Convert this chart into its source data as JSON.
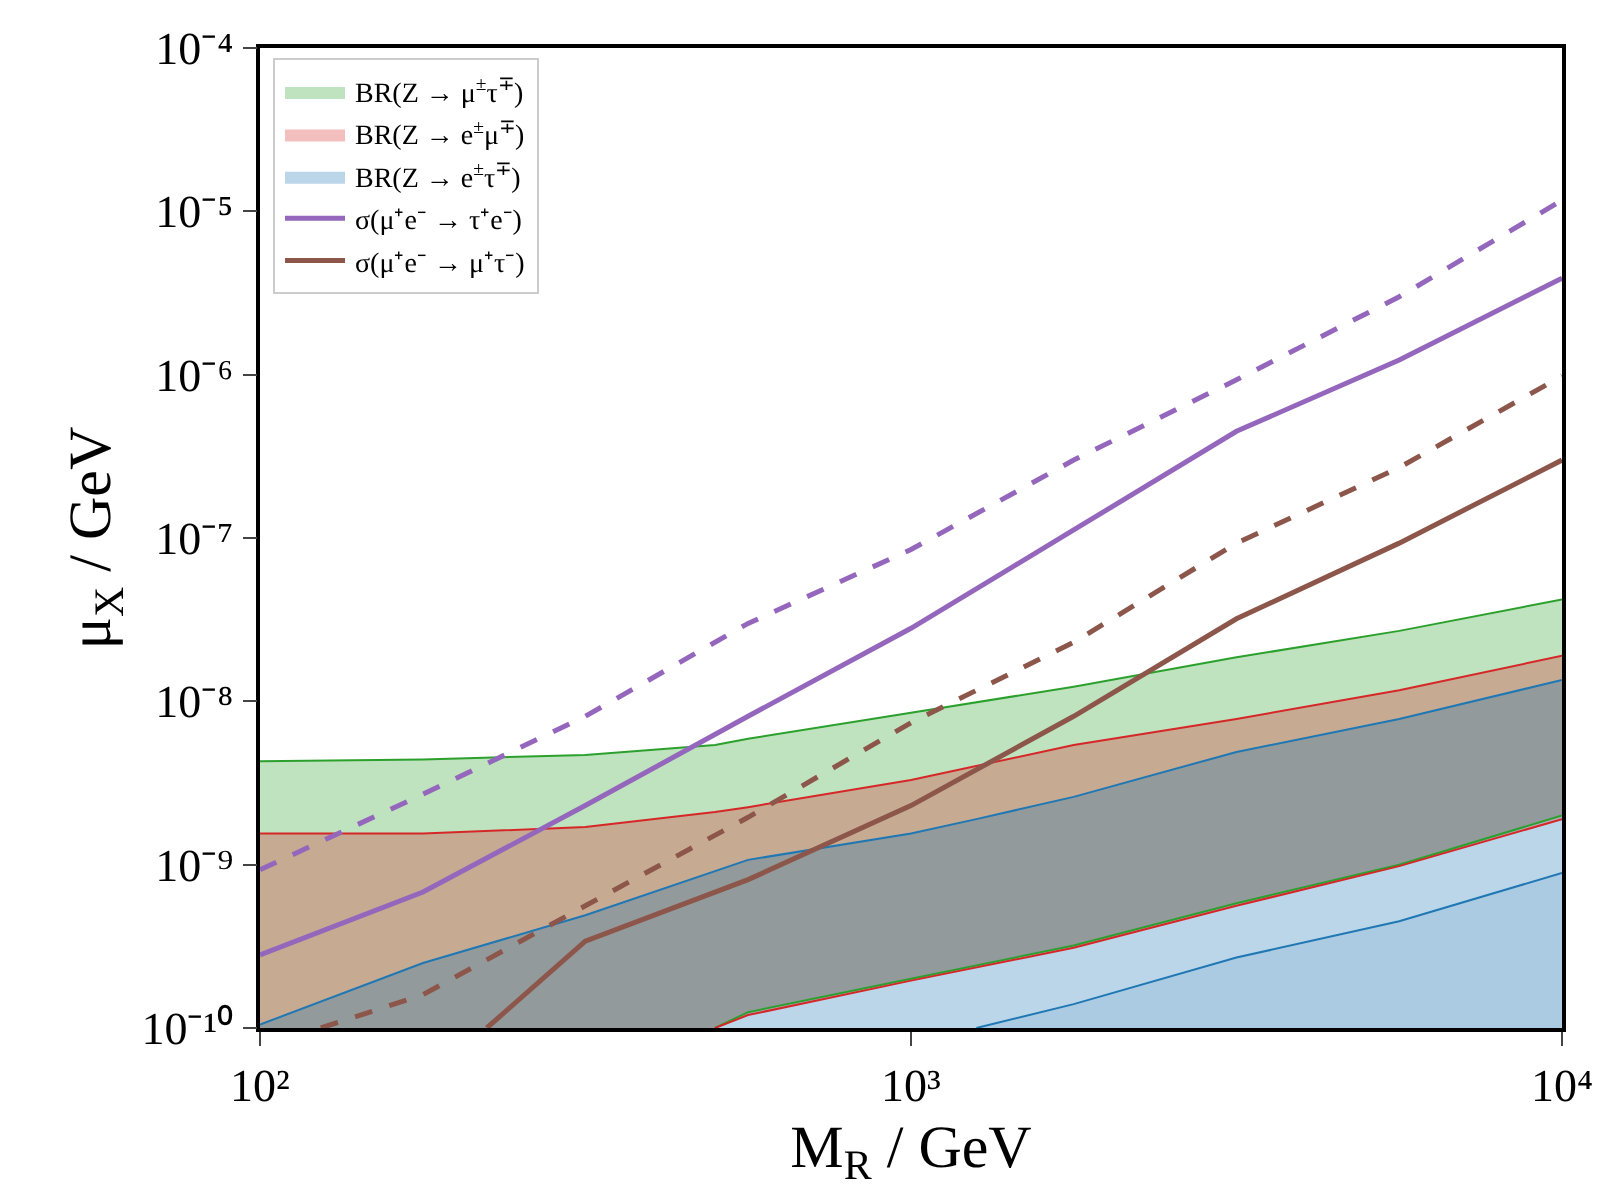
{
  "chart_data": {
    "type": "line",
    "xlabel": "M$_{R}$ / GeV",
    "ylabel": "μ$_{X}$ / GeV",
    "log": "xy",
    "legend": "top left",
    "marker": "none",
    "xlim": [
      100,
      10000
    ],
    "ylim": [
      1e-10,
      0.0001
    ],
    "xticks": [
      {
        "value": 100,
        "label": "10²"
      },
      {
        "value": 1000,
        "label": "10³"
      },
      {
        "value": 10000,
        "label": "10⁴"
      }
    ],
    "yticks": [
      {
        "value": 1e-10,
        "label": "10⁻¹⁰"
      },
      {
        "value": 1e-09,
        "label": "10⁻⁹"
      },
      {
        "value": 1e-08,
        "label": "10⁻⁸"
      },
      {
        "value": 1e-07,
        "label": "10⁻⁷"
      },
      {
        "value": 1e-06,
        "label": "10⁻⁶"
      },
      {
        "value": 1e-05,
        "label": "10⁻⁵"
      },
      {
        "value": 0.0001,
        "label": "10⁻⁴"
      }
    ],
    "series": [
      {
        "name": "BR(Z → μ$^{±}$τ$^{∓}$)",
        "color": "#2ca02c",
        "x": [
          100,
          178,
          316,
          500,
          562,
          1000,
          1778,
          3162,
          5623,
          10000
        ],
        "values": [
          4.3e-09,
          4.4e-09,
          4.7e-09,
          5.4e-09,
          5.9e-09,
          8.5e-09,
          1.23e-08,
          1.86e-08,
          2.7e-08,
          4.2e-08
        ],
        "lower": [
          1e-10,
          1e-10,
          1e-10,
          1e-10,
          1.25e-10,
          2e-10,
          3.2e-10,
          5.8e-10,
          1e-09,
          2e-09
        ],
        "upper": [
          4.3e-09,
          4.4e-09,
          4.7e-09,
          5.4e-09,
          5.9e-09,
          8.5e-09,
          1.23e-08,
          1.86e-08,
          2.7e-08,
          4.2e-08
        ]
      },
      {
        "name": "BR(Z → e$^{±}$μ$^{∓}$)",
        "color": "#d62728",
        "x": [
          100,
          178,
          316,
          500,
          562,
          1000,
          1778,
          3162,
          5623,
          10000
        ],
        "values": [
          1.55e-09,
          1.55e-09,
          1.7e-09,
          2.1e-09,
          2.25e-09,
          3.3e-09,
          5.4e-09,
          7.8e-09,
          1.17e-08,
          1.9e-08
        ],
        "lower": [
          1e-10,
          1e-10,
          1e-10,
          1e-10,
          1.2e-10,
          1.95e-10,
          3.1e-10,
          5.6e-10,
          9.8e-10,
          1.9e-09
        ],
        "upper": [
          1.55e-09,
          1.55e-09,
          1.7e-09,
          2.1e-09,
          2.25e-09,
          3.3e-09,
          5.4e-09,
          7.8e-09,
          1.17e-08,
          1.9e-08
        ]
      },
      {
        "name": "BR(Z → e$^{±}$τ$^{∓}$)",
        "color": "#1f77b4",
        "x": [
          100,
          178,
          316,
          562,
          1000,
          1260,
          1778,
          3162,
          5623,
          10000
        ],
        "values": [
          1.05e-10,
          2.5e-10,
          4.9e-10,
          1.07e-09,
          1.55e-09,
          1.9e-09,
          2.6e-09,
          4.9e-09,
          7.8e-09,
          1.35e-08
        ],
        "lower": [
          1e-10,
          1e-10,
          1e-10,
          1e-10,
          1e-10,
          1e-10,
          1.4e-10,
          2.7e-10,
          4.5e-10,
          8.9e-10
        ],
        "upper": [
          1.05e-10,
          2.5e-10,
          4.9e-10,
          1.07e-09,
          1.55e-09,
          1.9e-09,
          2.6e-09,
          4.9e-09,
          7.8e-09,
          1.35e-08
        ]
      },
      {
        "type": "area",
        "color": "#1f77b4",
        "x": [
          1260,
          1778,
          3162,
          5623,
          10000
        ],
        "values": [
          1e-10,
          1.4e-10,
          2.7e-10,
          4.5e-10,
          8.9e-10
        ]
      },
      {
        "line_style": "solid",
        "color": "#2ca02c",
        "x": [
          500,
          562,
          1000,
          1778,
          3162,
          5623,
          10000
        ],
        "values": [
          1e-10,
          1.25e-10,
          2e-10,
          3.2e-10,
          5.8e-10,
          1e-09,
          2e-09
        ]
      },
      {
        "line_style": "solid",
        "color": "#d62728",
        "x": [
          500,
          562,
          1000,
          1778,
          3162,
          5623,
          10000
        ],
        "values": [
          1e-10,
          1.2e-10,
          1.95e-10,
          3.1e-10,
          5.6e-10,
          9.8e-10,
          1.9e-09
        ]
      },
      {
        "name": "σ(μ⁺e⁻ → τ⁺e⁻)",
        "line_style": "solid",
        "color": "#9467bd",
        "x": [
          100,
          178,
          316,
          562,
          1000,
          1778,
          3162,
          5623,
          10000
        ],
        "values": [
          2.8e-10,
          6.8e-10,
          2.3e-09,
          8.1e-09,
          2.8e-08,
          1.12e-07,
          4.5e-07,
          1.23e-06,
          3.9e-06
        ]
      },
      {
        "name": "σ(μ⁺e⁻ → μ⁺τ⁻)",
        "line_style": "solid",
        "color": "#8c564b",
        "x": [
          223,
          316,
          562,
          1000,
          1778,
          3162,
          5623,
          10000
        ],
        "values": [
          1e-10,
          3.4e-10,
          8.1e-10,
          2.3e-09,
          8.1e-09,
          3.2e-08,
          9.3e-08,
          3e-07
        ]
      },
      {
        "line_style": "dashed",
        "color": "#9467bd",
        "x": [
          100,
          178,
          316,
          562,
          1000,
          1778,
          3162,
          5623,
          10000
        ],
        "values": [
          9.3e-10,
          2.7e-09,
          8.1e-09,
          3e-08,
          8.5e-08,
          3e-07,
          9.3e-07,
          3e-06,
          1.17e-05
        ]
      },
      {
        "line_style": "dashed",
        "color": "#8c564b",
        "x": [
          124,
          178,
          316,
          562,
          1000,
          1778,
          3162,
          5623,
          10000
        ],
        "values": [
          1e-10,
          1.6e-10,
          5.6e-10,
          1.95e-09,
          7.4e-09,
          2.3e-08,
          9.3e-08,
          2.7e-07,
          9.8e-07
        ]
      }
    ]
  }
}
